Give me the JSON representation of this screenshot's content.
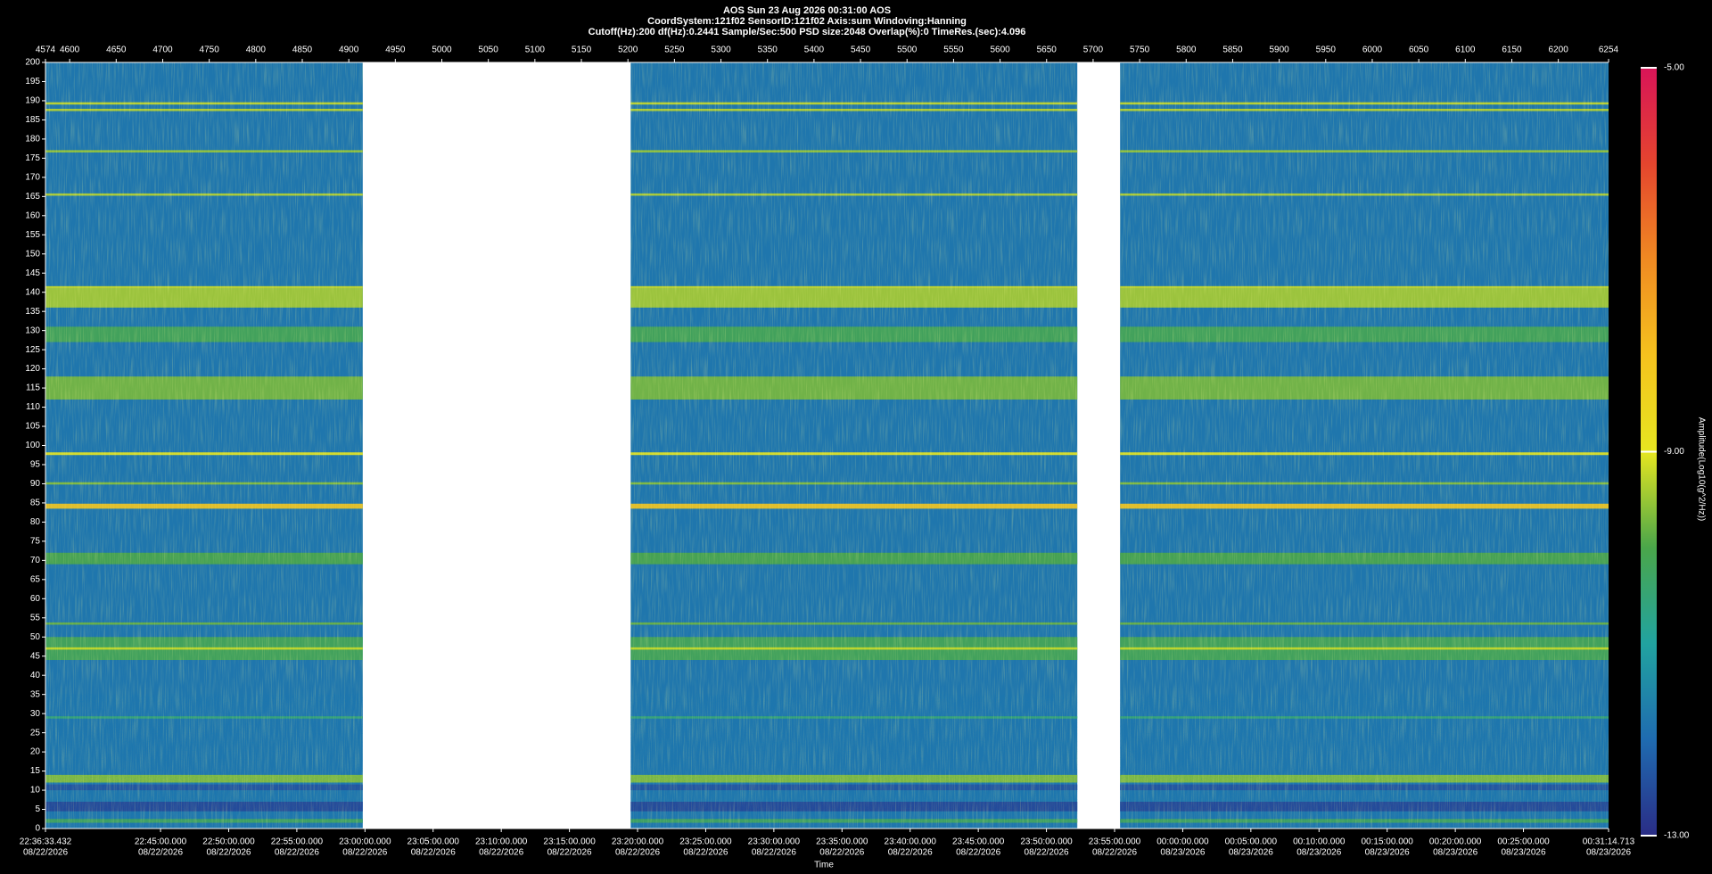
{
  "chart_data": {
    "type": "spectrogram",
    "title": "AOS  Sun 23 Aug 2026 00:31:00  AOS",
    "info_lines": [
      "CoordSystem:121f02   SensorID:121f02   Axis:sum   Windoving:Hanning",
      "Cutoff(Hz):200   df(Hz):0.2441   Sample/Sec:500   PSD size:2048   Overlap(%):0   TimeRes.(sec):4.096"
    ],
    "xlabel": "Time",
    "colorbar_label": "Amplitude(Log10(g^2/Hz))",
    "xlim": [
      4574,
      6254
    ],
    "x2ticks": [
      4574,
      4600,
      4650,
      4700,
      4750,
      4800,
      4850,
      4900,
      4950,
      5000,
      5050,
      5100,
      5150,
      5200,
      5250,
      5300,
      5350,
      5400,
      5450,
      5500,
      5550,
      5600,
      5650,
      5700,
      5750,
      5800,
      5850,
      5900,
      5950,
      6000,
      6050,
      6100,
      6150,
      6200,
      6254
    ],
    "xticks": [
      {
        "value": 4574,
        "label": "22:36:33.432",
        "date": "08/22/2026"
      },
      {
        "value": 4697.67,
        "label": "22:45:00.000",
        "date": "08/22/2026"
      },
      {
        "value": 4770.92,
        "label": "22:50:00.000",
        "date": "08/22/2026"
      },
      {
        "value": 4844.16,
        "label": "22:55:00.000",
        "date": "08/22/2026"
      },
      {
        "value": 4917.4,
        "label": "23:00:00.000",
        "date": "08/22/2026"
      },
      {
        "value": 4990.64,
        "label": "23:05:00.000",
        "date": "08/22/2026"
      },
      {
        "value": 5063.88,
        "label": "23:10:00.000",
        "date": "08/22/2026"
      },
      {
        "value": 5137.13,
        "label": "23:15:00.000",
        "date": "08/22/2026"
      },
      {
        "value": 5210.37,
        "label": "23:20:00.000",
        "date": "08/22/2026"
      },
      {
        "value": 5283.61,
        "label": "23:25:00.000",
        "date": "08/22/2026"
      },
      {
        "value": 5356.85,
        "label": "23:30:00.000",
        "date": "08/22/2026"
      },
      {
        "value": 5430.1,
        "label": "23:35:00.000",
        "date": "08/22/2026"
      },
      {
        "value": 5503.34,
        "label": "23:40:00.000",
        "date": "08/22/2026"
      },
      {
        "value": 5576.58,
        "label": "23:45:00.000",
        "date": "08/22/2026"
      },
      {
        "value": 5649.82,
        "label": "23:50:00.000",
        "date": "08/22/2026"
      },
      {
        "value": 5723.07,
        "label": "23:55:00.000",
        "date": "08/22/2026"
      },
      {
        "value": 5796.31,
        "label": "00:00:00.000",
        "date": "08/23/2026"
      },
      {
        "value": 5869.55,
        "label": "00:05:00.000",
        "date": "08/23/2026"
      },
      {
        "value": 5942.79,
        "label": "00:10:00.000",
        "date": "08/23/2026"
      },
      {
        "value": 6016.03,
        "label": "00:15:00.000",
        "date": "08/23/2026"
      },
      {
        "value": 6089.28,
        "label": "00:20:00.000",
        "date": "08/23/2026"
      },
      {
        "value": 6162.52,
        "label": "00:25:00.000",
        "date": "08/23/2026"
      },
      {
        "value": 6254,
        "label": "00:31:14.713",
        "date": "08/23/2026"
      }
    ],
    "ylim": [
      0,
      200
    ],
    "yticks": [
      0,
      5,
      10,
      15,
      20,
      25,
      30,
      35,
      40,
      45,
      50,
      55,
      60,
      65,
      70,
      75,
      80,
      85,
      90,
      95,
      100,
      105,
      110,
      115,
      120,
      125,
      130,
      135,
      140,
      145,
      150,
      155,
      160,
      165,
      170,
      175,
      180,
      185,
      190,
      195,
      200
    ],
    "clim": [
      -13,
      -5
    ],
    "cticks": [
      {
        "value": -5,
        "label": "-5.00"
      },
      {
        "value": -9,
        "label": "-9.00"
      },
      {
        "value": -13,
        "label": "-13.00"
      }
    ],
    "colormap": [
      "#2a2d86",
      "#1f6bb0",
      "#21a3a0",
      "#4aa64a",
      "#e6e620",
      "#f5c21e",
      "#f08a22",
      "#e5452e",
      "#d81458"
    ],
    "segments": [
      [
        4574,
        4915
      ],
      [
        5203,
        5683
      ],
      [
        5729,
        6254
      ]
    ],
    "background": {
      "freq": [
        0,
        3,
        8,
        12,
        17,
        22,
        34,
        36,
        60,
        100,
        150,
        200
      ],
      "amplitude": [
        -11.8,
        -12.2,
        -12.0,
        -11.5,
        -11.6,
        -11.2,
        -11.0,
        -10.6,
        -10.5,
        -10.4,
        -10.3,
        -10.6
      ]
    },
    "bands": [
      {
        "freq_range": [
          136,
          141
        ],
        "amplitude": -9.4
      },
      {
        "freq_range": [
          112,
          118
        ],
        "amplitude": -9.7
      },
      {
        "freq_range": [
          127,
          131
        ],
        "amplitude": -10.1
      },
      {
        "freq_range": [
          69,
          72
        ],
        "amplitude": -10.0
      },
      {
        "freq_range": [
          44,
          50
        ],
        "amplitude": -10.1
      },
      {
        "freq_range": [
          189,
          189.6
        ],
        "amplitude": -9.2
      },
      {
        "freq_range": [
          187.3,
          187.9
        ],
        "amplitude": -9.3
      },
      {
        "freq_range": [
          176.5,
          177.1
        ],
        "amplitude": -9.5
      },
      {
        "freq_range": [
          165.2,
          165.8
        ],
        "amplitude": -9.3
      },
      {
        "freq_range": [
          141,
          141.6
        ],
        "amplitude": -9.2
      },
      {
        "freq_range": [
          97.5,
          98.2
        ],
        "amplitude": -9.0
      },
      {
        "freq_range": [
          89.8,
          90.4
        ],
        "amplitude": -9.6
      },
      {
        "freq_range": [
          83.5,
          84.8
        ],
        "amplitude": -8.1
      },
      {
        "freq_range": [
          53.2,
          53.8
        ],
        "amplitude": -9.8
      },
      {
        "freq_range": [
          46.7,
          47.3
        ],
        "amplitude": -9.2
      },
      {
        "freq_range": [
          28.7,
          29.3
        ],
        "amplitude": -10.5
      },
      {
        "freq_range": [
          12,
          14
        ],
        "amplitude": -9.6
      },
      {
        "freq_range": [
          10,
          11.5
        ],
        "amplitude": -12.4
      },
      {
        "freq_range": [
          4.5,
          7
        ],
        "amplitude": -12.6
      },
      {
        "freq_range": [
          1.5,
          2.5
        ],
        "amplitude": -10.2
      }
    ]
  }
}
